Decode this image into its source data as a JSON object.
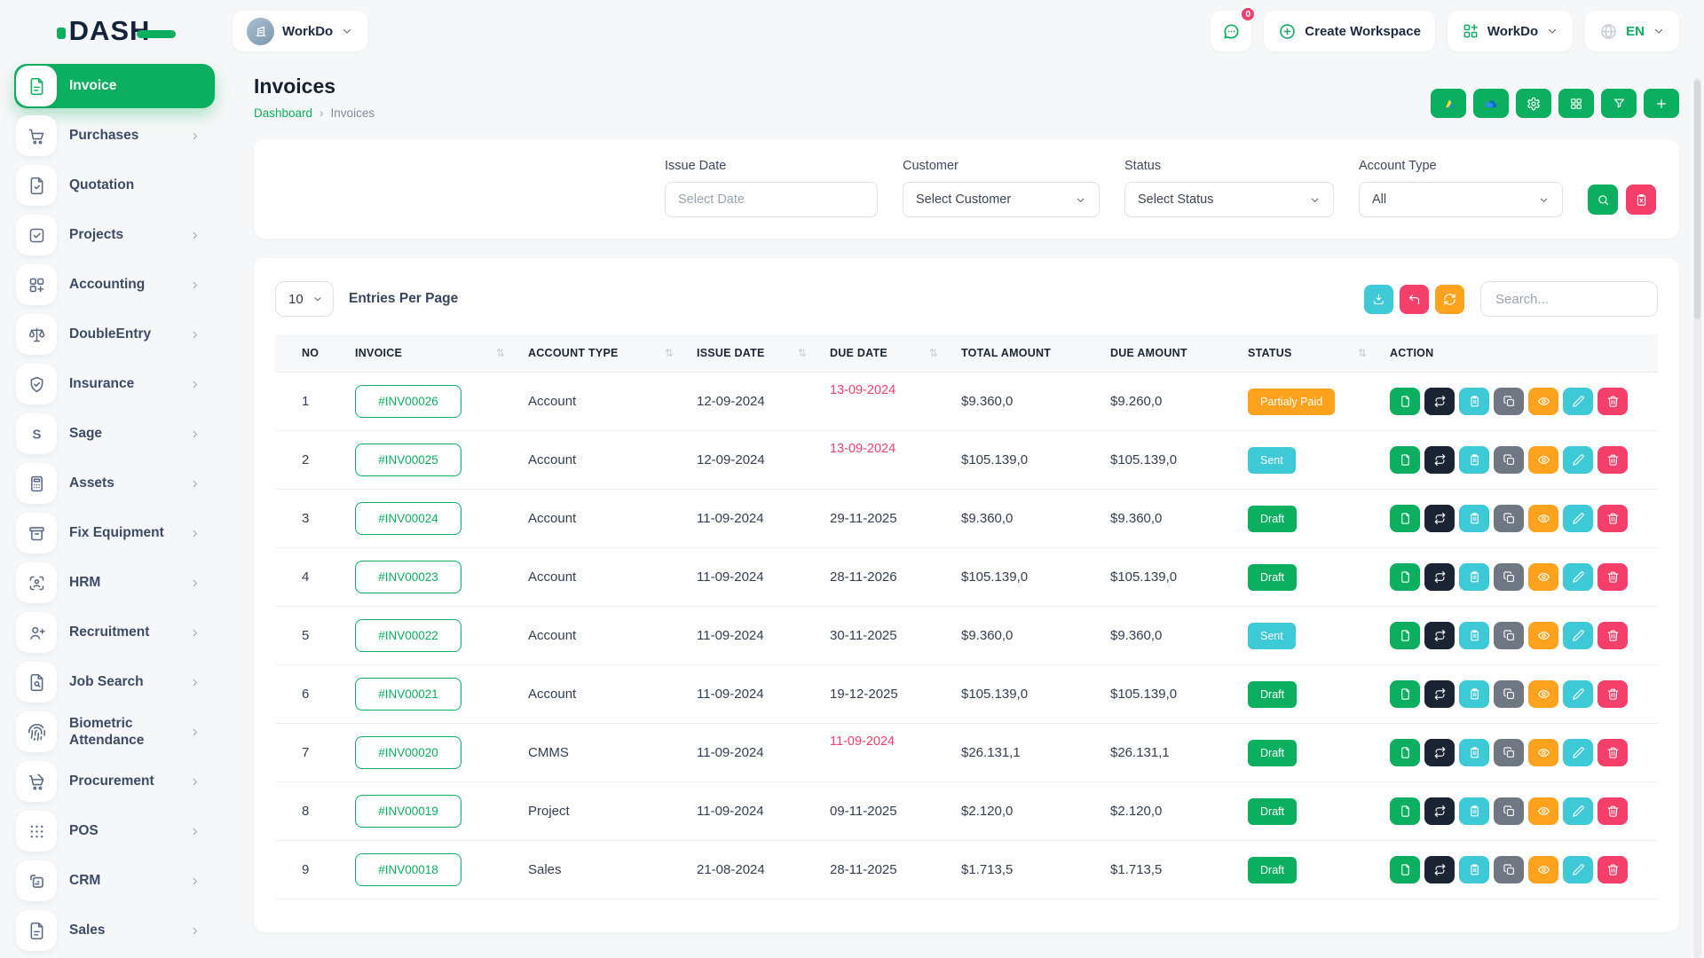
{
  "theme": {
    "green": "#0CAF60",
    "teal": "#3EC9D6",
    "pink": "#F43F6B",
    "orange": "#FFA21D",
    "dark": "#1A2433",
    "gray": "#6F7783"
  },
  "logo": {
    "text": "DASH"
  },
  "topbar": {
    "workspace_switcher": {
      "label": "WorkDo"
    },
    "messages": {
      "badge": "0"
    },
    "create_workspace": {
      "label": "Create Workspace"
    },
    "app_switcher": {
      "label": "WorkDo"
    },
    "language": {
      "label": "EN"
    }
  },
  "sidebar": {
    "items": [
      {
        "label": "Invoice",
        "icon": "file-invoice",
        "active": true,
        "chevron": false
      },
      {
        "label": "Purchases",
        "icon": "cart",
        "active": false,
        "chevron": true
      },
      {
        "label": "Quotation",
        "icon": "file-check",
        "active": false,
        "chevron": false
      },
      {
        "label": "Projects",
        "icon": "check-square",
        "active": false,
        "chevron": true
      },
      {
        "label": "Accounting",
        "icon": "grid-plus",
        "active": false,
        "chevron": true
      },
      {
        "label": "DoubleEntry",
        "icon": "scales",
        "active": false,
        "chevron": true
      },
      {
        "label": "Insurance",
        "icon": "shield-check",
        "active": false,
        "chevron": true
      },
      {
        "label": "Sage",
        "icon": "sage",
        "active": false,
        "chevron": true
      },
      {
        "label": "Assets",
        "icon": "calculator",
        "active": false,
        "chevron": true
      },
      {
        "label": "Fix Equipment",
        "icon": "archive",
        "active": false,
        "chevron": true
      },
      {
        "label": "HRM",
        "icon": "user-scan",
        "active": false,
        "chevron": true
      },
      {
        "label": "Recruitment",
        "icon": "user-plus",
        "active": false,
        "chevron": true
      },
      {
        "label": "Job Search",
        "icon": "file-search",
        "active": false,
        "chevron": true
      },
      {
        "label": "Biometric Attendance",
        "icon": "fingerprint",
        "active": false,
        "chevron": true
      },
      {
        "label": "Procurement",
        "icon": "cart-check",
        "active": false,
        "chevron": true
      },
      {
        "label": "POS",
        "icon": "dots-grid",
        "active": false,
        "chevron": true
      },
      {
        "label": "CRM",
        "icon": "crm-frame",
        "active": false,
        "chevron": true
      },
      {
        "label": "Sales",
        "icon": "file-plain",
        "active": false,
        "chevron": true
      }
    ]
  },
  "page": {
    "title": "Invoices",
    "breadcrumb": {
      "link": "Dashboard",
      "separator": "›",
      "current": "Invoices"
    },
    "header_buttons": [
      "google-drive",
      "onedrive",
      "settings",
      "grid",
      "filter",
      "add"
    ]
  },
  "filters": {
    "issue_date": {
      "label": "Issue Date",
      "placeholder": "Select Date"
    },
    "customer": {
      "label": "Customer",
      "value": "Select Customer"
    },
    "status": {
      "label": "Status",
      "value": "Select Status"
    },
    "account_type": {
      "label": "Account Type",
      "value": "All"
    }
  },
  "table_controls": {
    "entries_value": "10",
    "entries_label": "Entries Per Page",
    "search_placeholder": "Search..."
  },
  "table": {
    "columns": [
      {
        "label": "NO",
        "sortable": false
      },
      {
        "label": "INVOICE",
        "sortable": true
      },
      {
        "label": "ACCOUNT TYPE",
        "sortable": true
      },
      {
        "label": "ISSUE DATE",
        "sortable": true
      },
      {
        "label": "DUE DATE",
        "sortable": true
      },
      {
        "label": "TOTAL AMOUNT",
        "sortable": false
      },
      {
        "label": "DUE AMOUNT",
        "sortable": false
      },
      {
        "label": "STATUS",
        "sortable": true
      },
      {
        "label": "ACTION",
        "sortable": false
      }
    ],
    "action_buttons": [
      {
        "name": "payment",
        "color": "green",
        "icon": "file-action"
      },
      {
        "name": "convert",
        "color": "dark",
        "icon": "convert"
      },
      {
        "name": "duplicate",
        "color": "teal",
        "icon": "clipboard"
      },
      {
        "name": "copy",
        "color": "gray",
        "icon": "copy"
      },
      {
        "name": "view",
        "color": "orange",
        "icon": "eye"
      },
      {
        "name": "edit",
        "color": "teal",
        "icon": "pencil"
      },
      {
        "name": "delete",
        "color": "pink",
        "icon": "trash"
      }
    ],
    "rows": [
      {
        "no": "1",
        "invoice": "#INV00026",
        "account_type": "Account",
        "issue_date": "12-09-2024",
        "due_date": "13-09-2024",
        "overdue": true,
        "total_amount": "$9.360,0",
        "due_amount": "$9.260,0",
        "status": "Partialy Paid",
        "status_color": "orange"
      },
      {
        "no": "2",
        "invoice": "#INV00025",
        "account_type": "Account",
        "issue_date": "12-09-2024",
        "due_date": "13-09-2024",
        "overdue": true,
        "total_amount": "$105.139,0",
        "due_amount": "$105.139,0",
        "status": "Sent",
        "status_color": "teal"
      },
      {
        "no": "3",
        "invoice": "#INV00024",
        "account_type": "Account",
        "issue_date": "11-09-2024",
        "due_date": "29-11-2025",
        "overdue": false,
        "total_amount": "$9.360,0",
        "due_amount": "$9.360,0",
        "status": "Draft",
        "status_color": "green"
      },
      {
        "no": "4",
        "invoice": "#INV00023",
        "account_type": "Account",
        "issue_date": "11-09-2024",
        "due_date": "28-11-2026",
        "overdue": false,
        "total_amount": "$105.139,0",
        "due_amount": "$105.139,0",
        "status": "Draft",
        "status_color": "green"
      },
      {
        "no": "5",
        "invoice": "#INV00022",
        "account_type": "Account",
        "issue_date": "11-09-2024",
        "due_date": "30-11-2025",
        "overdue": false,
        "total_amount": "$9.360,0",
        "due_amount": "$9.360,0",
        "status": "Sent",
        "status_color": "teal"
      },
      {
        "no": "6",
        "invoice": "#INV00021",
        "account_type": "Account",
        "issue_date": "11-09-2024",
        "due_date": "19-12-2025",
        "overdue": false,
        "total_amount": "$105.139,0",
        "due_amount": "$105.139,0",
        "status": "Draft",
        "status_color": "green"
      },
      {
        "no": "7",
        "invoice": "#INV00020",
        "account_type": "CMMS",
        "issue_date": "11-09-2024",
        "due_date": "11-09-2024",
        "overdue": true,
        "total_amount": "$26.131,1",
        "due_amount": "$26.131,1",
        "status": "Draft",
        "status_color": "green"
      },
      {
        "no": "8",
        "invoice": "#INV00019",
        "account_type": "Project",
        "issue_date": "11-09-2024",
        "due_date": "09-11-2025",
        "overdue": false,
        "total_amount": "$2.120,0",
        "due_amount": "$2.120,0",
        "status": "Draft",
        "status_color": "green"
      },
      {
        "no": "9",
        "invoice": "#INV00018",
        "account_type": "Sales",
        "issue_date": "21-08-2024",
        "due_date": "28-11-2025",
        "overdue": false,
        "total_amount": "$1.713,5",
        "due_amount": "$1.713,5",
        "status": "Draft",
        "status_color": "green"
      }
    ]
  }
}
